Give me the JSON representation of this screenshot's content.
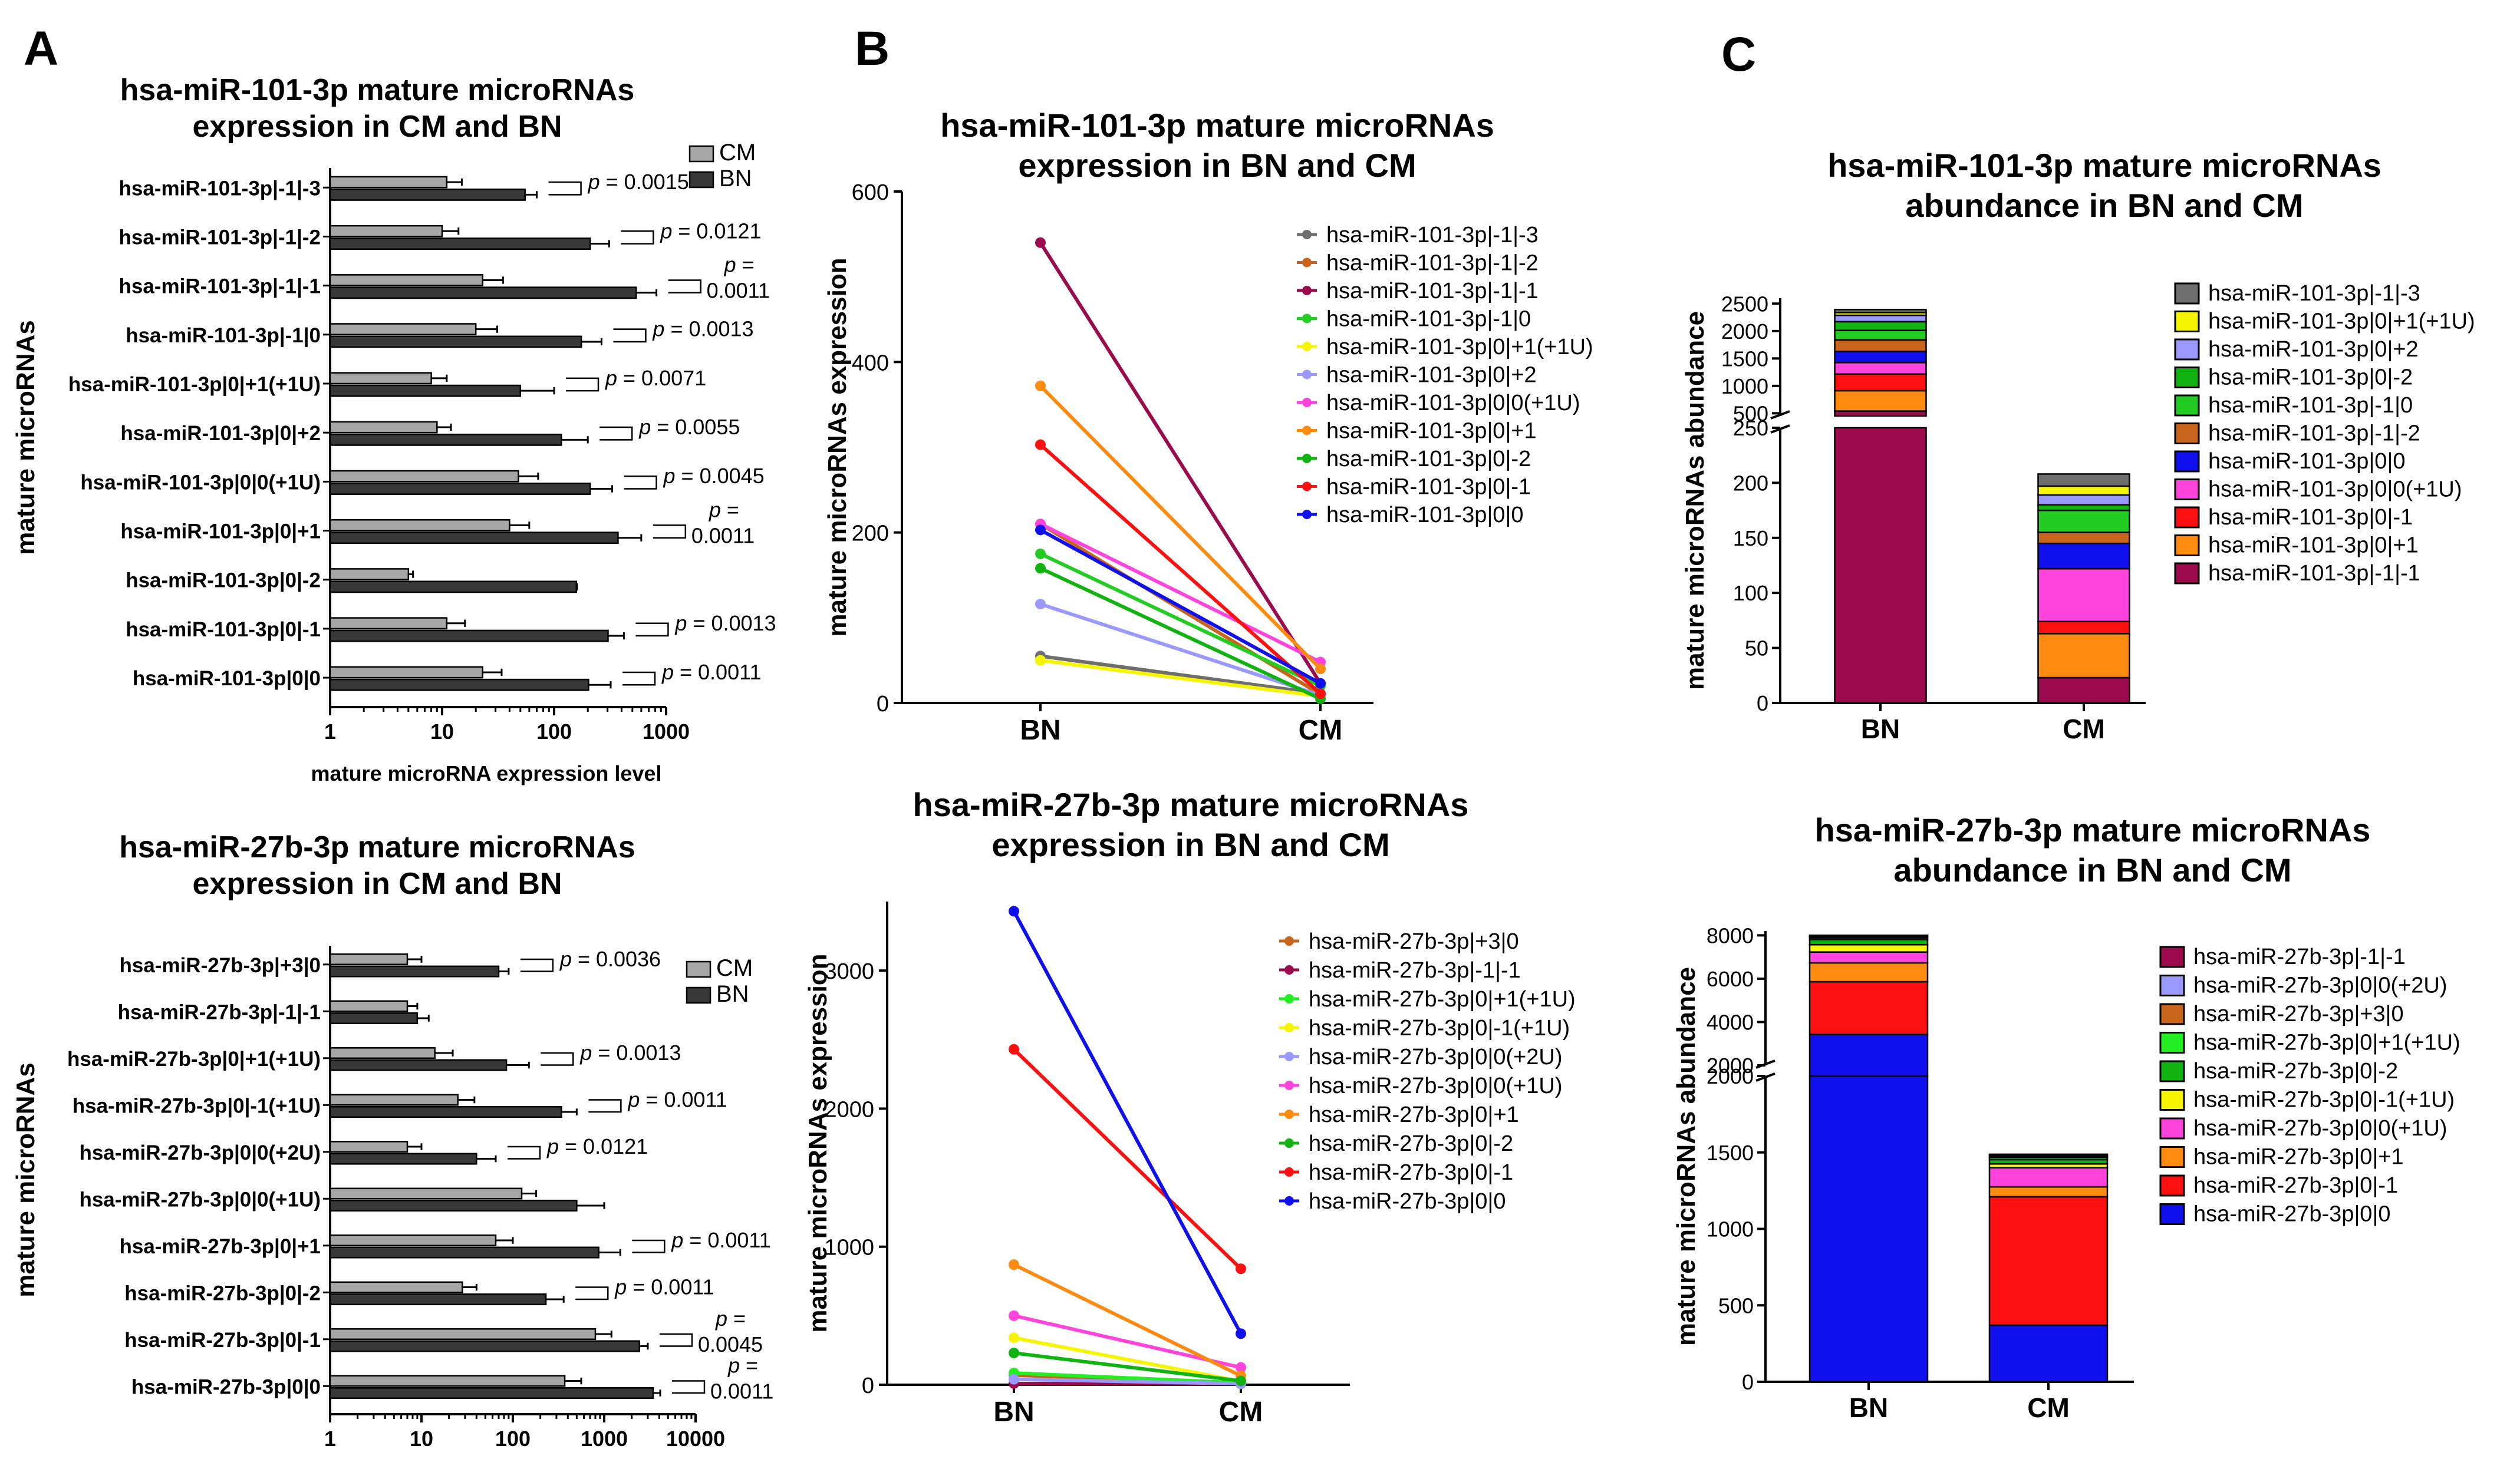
{
  "panels": {
    "a": "A",
    "b": "B",
    "c": "C"
  },
  "colors": {
    "bar_cm": "#a6a6a6",
    "bar_bn": "#383838",
    "mir101": {
      "hsa-miR-101-3p|-1|-3": "#6e6e6e",
      "hsa-miR-101-3p|-1|-2": "#c8651a",
      "hsa-miR-101-3p|-1|-1": "#9b0a4d",
      "hsa-miR-101-3p|-1|0": "#22cc22",
      "hsa-miR-101-3p|0|+1(+1U)": "#f5f500",
      "hsa-miR-101-3p|0|+2": "#9999ff",
      "hsa-miR-101-3p|0|0(+1U)": "#ff44dd",
      "hsa-miR-101-3p|0|+1": "#ff8a10",
      "hsa-miR-101-3p|0|-2": "#11b311",
      "hsa-miR-101-3p|0|-1": "#ff1010",
      "hsa-miR-101-3p|0|0": "#1010ee"
    },
    "mir27": {
      "hsa-miR-27b-3p|+3|0": "#c8651a",
      "hsa-miR-27b-3p|-1|-1": "#9b0a4d",
      "hsa-miR-27b-3p|0|+1(+1U)": "#22ee22",
      "hsa-miR-27b-3p|0|-1(+1U)": "#f5f500",
      "hsa-miR-27b-3p|0|0(+2U)": "#9999ff",
      "hsa-miR-27b-3p|0|0(+1U)": "#ff44dd",
      "hsa-miR-27b-3p|0|+1": "#ff8a10",
      "hsa-miR-27b-3p|0|-2": "#11b311",
      "hsa-miR-27b-3p|0|-1": "#ff1010",
      "hsa-miR-27b-3p|0|0": "#1010ee"
    }
  },
  "chart_data": [
    {
      "id": "A1",
      "type": "bar",
      "orientation": "horizontal",
      "title": "hsa-miR-101-3p mature microRNAs\nexpression in CM and BN",
      "xlabel": "mature microRNA expression level",
      "ylabel": "mature microRNAs",
      "xscale": "log",
      "xlim": [
        1,
        1000
      ],
      "xticks": [
        "1",
        "10",
        "100",
        "1000"
      ],
      "legend": [
        "CM",
        "BN"
      ],
      "categories": [
        "hsa-miR-101-3p|-1|-3",
        "hsa-miR-101-3p|-1|-2",
        "hsa-miR-101-3p|-1|-1",
        "hsa-miR-101-3p|-1|0",
        "hsa-miR-101-3p|0|+1(+1U)",
        "hsa-miR-101-3p|0|+2",
        "hsa-miR-101-3p|0|0(+1U)",
        "hsa-miR-101-3p|0|+1",
        "hsa-miR-101-3p|0|-2",
        "hsa-miR-101-3p|0|-1",
        "hsa-miR-101-3p|0|0"
      ],
      "series": [
        {
          "name": "CM",
          "values": [
            11,
            10,
            23,
            20,
            8,
            9,
            48,
            40,
            5,
            11,
            23
          ],
          "errors": [
            15,
            14,
            35,
            31,
            11,
            12,
            72,
            60,
            5.5,
            16,
            34
          ]
        },
        {
          "name": "BN",
          "values": [
            55,
            210,
            540,
            175,
            50,
            116,
            210,
            372,
            158,
            303,
            203
          ],
          "errors": [
            70,
            310,
            820,
            265,
            100,
            200,
            330,
            600,
            160,
            420,
            320
          ]
        }
      ],
      "pvalues": [
        "p = 0.0015",
        "p = 0.0121",
        "p =\n0.0011",
        "p = 0.0013",
        "p = 0.0071",
        "p = 0.0055",
        "p = 0.0045",
        "p =\n0.0011",
        "",
        "p = 0.0013",
        "p = 0.0011"
      ]
    },
    {
      "id": "A2",
      "type": "bar",
      "orientation": "horizontal",
      "title": "hsa-miR-27b-3p mature microRNAs\nexpression in CM and BN",
      "xlabel": "mature microRNA expression level",
      "ylabel": "mature microRNAs",
      "xscale": "log",
      "xlim": [
        1,
        10000
      ],
      "xticks": [
        "1",
        "10",
        "100",
        "1000",
        "10000"
      ],
      "legend": [
        "CM",
        "BN"
      ],
      "categories": [
        "hsa-miR-27b-3p|+3|0",
        "hsa-miR-27b-3p|-1|-1",
        "hsa-miR-27b-3p|0|+1(+1U)",
        "hsa-miR-27b-3p|0|-1(+1U)",
        "hsa-miR-27b-3p|0|0(+2U)",
        "hsa-miR-27b-3p|0|0(+1U)",
        "hsa-miR-27b-3p|0|+1",
        "hsa-miR-27b-3p|0|-2",
        "hsa-miR-27b-3p|0|-1",
        "hsa-miR-27b-3p|0|0"
      ],
      "series": [
        {
          "name": "CM",
          "values": [
            7,
            7,
            14,
            25,
            7,
            125,
            65,
            28,
            800,
            370
          ],
          "errors": [
            10,
            9,
            22,
            38,
            10,
            180,
            100,
            40,
            1200,
            560
          ]
        },
        {
          "name": "BN",
          "values": [
            70,
            9,
            85,
            340,
            40,
            500,
            870,
            230,
            2430,
            3430
          ],
          "errors": [
            90,
            12,
            150,
            500,
            65,
            1000,
            1500,
            360,
            3000,
            4100
          ]
        }
      ],
      "pvalues": [
        "p = 0.0036",
        "",
        "p = 0.0013",
        "p = 0.0011",
        "p = 0.0121",
        "",
        "p = 0.0011",
        "p = 0.0011",
        "p =\n0.0045",
        "p =\n0.0011"
      ]
    },
    {
      "id": "B1",
      "type": "line",
      "title": "hsa-miR-101-3p mature microRNAs\nexpression in BN and CM",
      "ylabel": "mature microRNAs expression",
      "categories": [
        "BN",
        "CM"
      ],
      "ylim": [
        0,
        600
      ],
      "yticks": [
        0,
        200,
        400,
        600
      ],
      "series": [
        {
          "name": "hsa-miR-101-3p|-1|-3",
          "values": [
            55,
            11
          ]
        },
        {
          "name": "hsa-miR-101-3p|-1|-2",
          "values": [
            210,
            10
          ]
        },
        {
          "name": "hsa-miR-101-3p|-1|-1",
          "values": [
            540,
            23
          ]
        },
        {
          "name": "hsa-miR-101-3p|-1|0",
          "values": [
            175,
            20
          ]
        },
        {
          "name": "hsa-miR-101-3p|0|+1(+1U)",
          "values": [
            50,
            8
          ]
        },
        {
          "name": "hsa-miR-101-3p|0|+2",
          "values": [
            116,
            9
          ]
        },
        {
          "name": "hsa-miR-101-3p|0|0(+1U)",
          "values": [
            210,
            48
          ]
        },
        {
          "name": "hsa-miR-101-3p|0|+1",
          "values": [
            372,
            40
          ]
        },
        {
          "name": "hsa-miR-101-3p|0|-2",
          "values": [
            158,
            5
          ]
        },
        {
          "name": "hsa-miR-101-3p|0|-1",
          "values": [
            303,
            11
          ]
        },
        {
          "name": "hsa-miR-101-3p|0|0",
          "values": [
            203,
            23
          ]
        }
      ]
    },
    {
      "id": "B2",
      "type": "line",
      "title": "hsa-miR-27b-3p mature microRNAs\nexpression in BN and CM",
      "ylabel": "mature microRNAs expression",
      "categories": [
        "BN",
        "CM"
      ],
      "ylim": [
        0,
        3500
      ],
      "yticks": [
        0,
        1000,
        2000,
        3000
      ],
      "series": [
        {
          "name": "hsa-miR-27b-3p|+3|0",
          "values": [
            70,
            7
          ]
        },
        {
          "name": "hsa-miR-27b-3p|-1|-1",
          "values": [
            9,
            7
          ]
        },
        {
          "name": "hsa-miR-27b-3p|0|+1(+1U)",
          "values": [
            85,
            14
          ]
        },
        {
          "name": "hsa-miR-27b-3p|0|-1(+1U)",
          "values": [
            340,
            25
          ]
        },
        {
          "name": "hsa-miR-27b-3p|0|0(+2U)",
          "values": [
            40,
            7
          ]
        },
        {
          "name": "hsa-miR-27b-3p|0|0(+1U)",
          "values": [
            500,
            125
          ]
        },
        {
          "name": "hsa-miR-27b-3p|0|+1",
          "values": [
            870,
            65
          ]
        },
        {
          "name": "hsa-miR-27b-3p|0|-2",
          "values": [
            230,
            28
          ]
        },
        {
          "name": "hsa-miR-27b-3p|0|-1",
          "values": [
            2430,
            840
          ]
        },
        {
          "name": "hsa-miR-27b-3p|0|0",
          "values": [
            3430,
            370
          ]
        }
      ]
    },
    {
      "id": "C1",
      "type": "bar",
      "stacked": true,
      "title": "hsa-miR-101-3p mature microRNAs\nabundance in BN and CM",
      "ylabel": "mature microRNAs abundance",
      "categories": [
        "BN",
        "CM"
      ],
      "ybreak": [
        250,
        450
      ],
      "yticks_lower": [
        0,
        50,
        100,
        150,
        200,
        250
      ],
      "yticks_upper": [
        500,
        1000,
        1500,
        2000,
        2500
      ],
      "ylim": [
        0,
        2600
      ],
      "stack_order": [
        "hsa-miR-101-3p|-1|-1",
        "hsa-miR-101-3p|0|+1",
        "hsa-miR-101-3p|0|-1",
        "hsa-miR-101-3p|0|0(+1U)",
        "hsa-miR-101-3p|0|0",
        "hsa-miR-101-3p|-1|-2",
        "hsa-miR-101-3p|-1|0",
        "hsa-miR-101-3p|0|-2",
        "hsa-miR-101-3p|0|+2",
        "hsa-miR-101-3p|0|+1(+1U)",
        "hsa-miR-101-3p|-1|-3"
      ],
      "legend": [
        "hsa-miR-101-3p|-1|-3",
        "hsa-miR-101-3p|0|+1(+1U)",
        "hsa-miR-101-3p|0|+2",
        "hsa-miR-101-3p|0|-2",
        "hsa-miR-101-3p|-1|0",
        "hsa-miR-101-3p|-1|-2",
        "hsa-miR-101-3p|0|0",
        "hsa-miR-101-3p|0|0(+1U)",
        "hsa-miR-101-3p|0|-1",
        "hsa-miR-101-3p|0|+1",
        "hsa-miR-101-3p|-1|-1"
      ],
      "values": {
        "BN": [
          540,
          372,
          303,
          210,
          203,
          210,
          175,
          158,
          116,
          50,
          55
        ],
        "CM": [
          23,
          40,
          11,
          48,
          23,
          10,
          20,
          5,
          9,
          8,
          11
        ]
      }
    },
    {
      "id": "C2",
      "type": "bar",
      "stacked": true,
      "title": "hsa-miR-27b-3p mature microRNAs\nabundance in BN and CM",
      "ylabel": "mature microRNAs abundance",
      "categories": [
        "BN",
        "CM"
      ],
      "ybreak": [
        2000,
        2000
      ],
      "yticks_lower": [
        0,
        500,
        1000,
        1500,
        2000
      ],
      "yticks_upper": [
        2000,
        4000,
        6000,
        8000
      ],
      "ylim": [
        0,
        8200
      ],
      "stack_order": [
        "hsa-miR-27b-3p|0|0",
        "hsa-miR-27b-3p|0|-1",
        "hsa-miR-27b-3p|0|+1",
        "hsa-miR-27b-3p|0|0(+1U)",
        "hsa-miR-27b-3p|0|-1(+1U)",
        "hsa-miR-27b-3p|0|-2",
        "hsa-miR-27b-3p|0|+1(+1U)",
        "hsa-miR-27b-3p|+3|0",
        "hsa-miR-27b-3p|0|0(+2U)",
        "hsa-miR-27b-3p|-1|-1"
      ],
      "legend": [
        "hsa-miR-27b-3p|-1|-1",
        "hsa-miR-27b-3p|0|0(+2U)",
        "hsa-miR-27b-3p|+3|0",
        "hsa-miR-27b-3p|0|+1(+1U)",
        "hsa-miR-27b-3p|0|-2",
        "hsa-miR-27b-3p|0|-1(+1U)",
        "hsa-miR-27b-3p|0|0(+1U)",
        "hsa-miR-27b-3p|0|+1",
        "hsa-miR-27b-3p|0|-1",
        "hsa-miR-27b-3p|0|0"
      ],
      "values": {
        "BN": [
          3430,
          2430,
          870,
          500,
          340,
          230,
          85,
          70,
          40,
          9
        ],
        "CM": [
          370,
          840,
          65,
          125,
          25,
          28,
          14,
          7,
          7,
          7
        ]
      }
    }
  ]
}
